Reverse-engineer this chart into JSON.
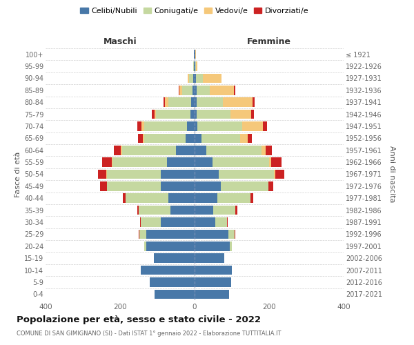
{
  "age_groups": [
    "0-4",
    "5-9",
    "10-14",
    "15-19",
    "20-24",
    "25-29",
    "30-34",
    "35-39",
    "40-44",
    "45-49",
    "50-54",
    "55-59",
    "60-64",
    "65-69",
    "70-74",
    "75-79",
    "80-84",
    "85-89",
    "90-94",
    "95-99",
    "100+"
  ],
  "birth_years": [
    "2017-2021",
    "2012-2016",
    "2007-2011",
    "2002-2006",
    "1997-2001",
    "1992-1996",
    "1987-1991",
    "1982-1986",
    "1977-1981",
    "1972-1976",
    "1967-1971",
    "1962-1966",
    "1957-1961",
    "1952-1956",
    "1947-1951",
    "1942-1946",
    "1937-1941",
    "1932-1936",
    "1927-1931",
    "1922-1926",
    "≤ 1921"
  ],
  "colors": {
    "celibe": "#4878a8",
    "coniugato": "#c5d8a0",
    "vedovo": "#f5c87a",
    "divorziato": "#cc2222"
  },
  "maschi": {
    "celibe": [
      108,
      120,
      145,
      110,
      130,
      130,
      90,
      65,
      70,
      90,
      90,
      75,
      50,
      25,
      20,
      12,
      10,
      5,
      4,
      2,
      1
    ],
    "coniugato": [
      0,
      0,
      0,
      0,
      5,
      18,
      55,
      85,
      115,
      145,
      145,
      145,
      145,
      110,
      115,
      92,
      60,
      28,
      10,
      1,
      0
    ],
    "vedovo": [
      0,
      0,
      0,
      0,
      0,
      1,
      0,
      0,
      0,
      0,
      2,
      3,
      4,
      4,
      8,
      4,
      10,
      8,
      5,
      0,
      0
    ],
    "divorziato": [
      0,
      0,
      0,
      0,
      0,
      1,
      2,
      4,
      8,
      18,
      22,
      25,
      18,
      12,
      10,
      6,
      3,
      2,
      0,
      0,
      0
    ]
  },
  "femmine": {
    "celibe": [
      92,
      98,
      100,
      80,
      95,
      90,
      55,
      50,
      62,
      70,
      65,
      48,
      32,
      18,
      8,
      5,
      5,
      5,
      4,
      1,
      1
    ],
    "coniugato": [
      0,
      0,
      0,
      0,
      5,
      18,
      32,
      60,
      88,
      128,
      148,
      152,
      148,
      105,
      120,
      92,
      70,
      35,
      18,
      2,
      0
    ],
    "vedovo": [
      0,
      0,
      0,
      0,
      0,
      0,
      0,
      0,
      0,
      0,
      4,
      5,
      10,
      20,
      55,
      55,
      80,
      65,
      50,
      5,
      2
    ],
    "divorziato": [
      0,
      0,
      0,
      0,
      0,
      1,
      2,
      4,
      8,
      14,
      24,
      28,
      18,
      10,
      12,
      8,
      6,
      5,
      0,
      0,
      0
    ]
  },
  "title": "Popolazione per età, sesso e stato civile - 2022",
  "subtitle": "COMUNE DI SAN GIMIGNANO (SI) - Dati ISTAT 1° gennaio 2022 - Elaborazione TUTTITALIA.IT",
  "xlabel_left": "Maschi",
  "xlabel_right": "Femmine",
  "ylabel_left": "Fasce di età",
  "ylabel_right": "Anni di nascita",
  "xlim": 400,
  "legend_labels": [
    "Celibi/Nubili",
    "Coniugati/e",
    "Vedovi/e",
    "Divorziati/e"
  ],
  "background_color": "#ffffff",
  "grid_color": "#cccccc"
}
